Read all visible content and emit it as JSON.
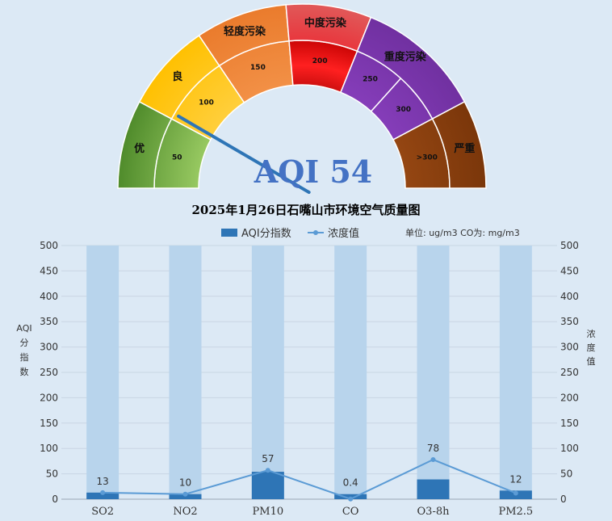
{
  "gauge": {
    "aqi_text": "AQI 54",
    "aqi_value": 54,
    "outer_labels": [
      "优",
      "良",
      "轻度污染",
      "中度污染",
      "重度污染",
      "严重"
    ],
    "inner_labels": [
      "50",
      "100",
      "150",
      "200",
      "250",
      "300",
      ">300"
    ],
    "colors": {
      "good": "#6aa63a",
      "moderate": "#ffc000",
      "light": "#ed7d31",
      "medium": "#e02020",
      "heavy": "#7030a0",
      "severe": "#843c0c",
      "needle": "#2e75b6",
      "aqi_text": "#4472c4"
    }
  },
  "chart_data": {
    "type": "bar",
    "title": "2025年1月26日石嘴山市环境空气质量图",
    "legend": {
      "bar_label": "AQI分指数",
      "line_label": "浓度值",
      "placement": "top"
    },
    "units_note": "单位: ug/m3  CO为: mg/m3",
    "categories": [
      "SO2",
      "NO2",
      "PM10",
      "CO",
      "O3-8h",
      "PM2.5"
    ],
    "aqi_values": [
      13,
      10,
      54,
      10,
      39,
      17
    ],
    "concentration_values": [
      13,
      10,
      57,
      0.4,
      78,
      12
    ],
    "concentration_labels": [
      "13",
      "10",
      "57",
      "0.4",
      "78",
      "12"
    ],
    "ylim": [
      0,
      500
    ],
    "yticks": [
      0,
      50,
      100,
      150,
      200,
      250,
      300,
      350,
      400,
      450,
      500
    ],
    "ylabel_left": "AQI分指数",
    "ylabel_right": "浓度值",
    "grid": true,
    "colors": {
      "bar": "#2e75b6",
      "background_bar": "#b8d4ec",
      "line": "#5b9bd5"
    }
  }
}
